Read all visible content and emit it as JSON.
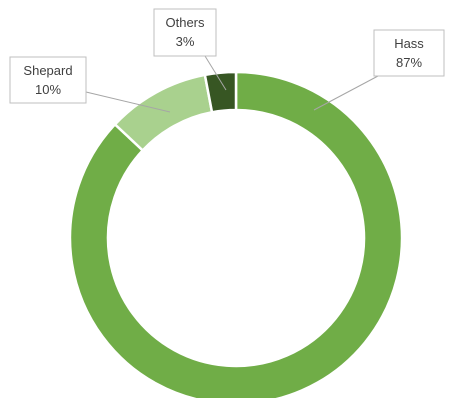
{
  "chart_data": {
    "type": "pie",
    "variant": "donut",
    "title": "",
    "legend": "none",
    "categories": [
      "Hass",
      "Shepard",
      "Others"
    ],
    "values": [
      87,
      10,
      3
    ],
    "value_labels": [
      "87%",
      "10%",
      "3%"
    ],
    "colors": [
      "#70ad47",
      "#a9d18e",
      "#375623"
    ],
    "border_color": "#ffffff"
  }
}
